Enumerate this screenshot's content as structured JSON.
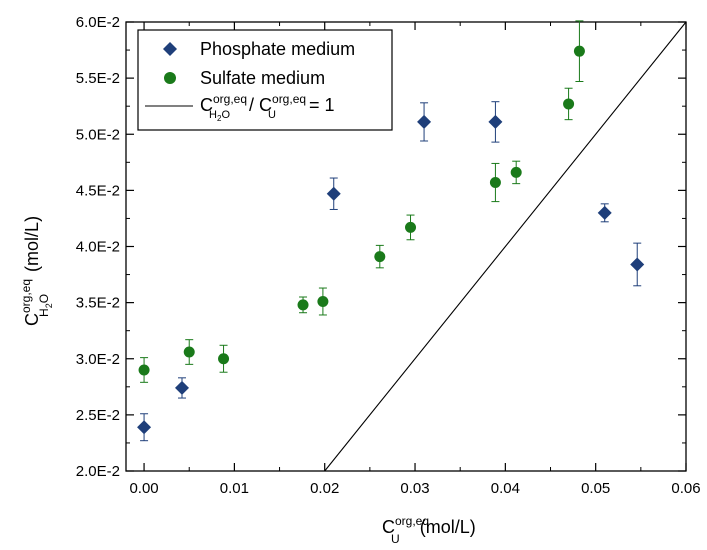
{
  "chart_data": {
    "type": "scatter",
    "x_axis": {
      "ylim_note": "",
      "ticks": [
        "0.00",
        "0.01",
        "0.02",
        "0.03",
        "0.04",
        "0.05",
        "0.06"
      ],
      "min": -0.002,
      "max": 0.06,
      "label_main": "C",
      "label_sup": "org,eq",
      "label_sub": "U",
      "label_unit": "(mol/L)"
    },
    "y_axis": {
      "ticks": [
        "2.0E-2",
        "2.5E-2",
        "3.0E-2",
        "3.5E-2",
        "4.0E-2",
        "4.5E-2",
        "5.0E-2",
        "5.5E-2",
        "6.0E-2"
      ],
      "min": 0.02,
      "max": 0.06,
      "label_main": "C",
      "label_sup": "org,eq",
      "label_sub": "H",
      "label_sub2": "2",
      "label_sub3": "O",
      "label_unit": "(mol/L)"
    },
    "series": [
      {
        "name": "Phosphate medium",
        "marker": "diamond",
        "color": "#1f3f7a",
        "points": [
          {
            "x": 0.0,
            "y": 0.0239,
            "err": 0.0012
          },
          {
            "x": 0.0042,
            "y": 0.0274,
            "err": 0.0009
          },
          {
            "x": 0.021,
            "y": 0.0447,
            "err": 0.0014
          },
          {
            "x": 0.031,
            "y": 0.0511,
            "err": 0.0017
          },
          {
            "x": 0.0389,
            "y": 0.0511,
            "err": 0.0018
          },
          {
            "x": 0.051,
            "y": 0.043,
            "err": 0.0008
          },
          {
            "x": 0.0546,
            "y": 0.0384,
            "err": 0.0019
          }
        ]
      },
      {
        "name": "Sulfate medium",
        "marker": "circle",
        "color": "#1a7a1a",
        "points": [
          {
            "x": 0.0,
            "y": 0.029,
            "err": 0.0011
          },
          {
            "x": 0.005,
            "y": 0.0306,
            "err": 0.0011
          },
          {
            "x": 0.0088,
            "y": 0.03,
            "err": 0.0012
          },
          {
            "x": 0.0176,
            "y": 0.0348,
            "err": 0.0007
          },
          {
            "x": 0.0198,
            "y": 0.0351,
            "err": 0.0012
          },
          {
            "x": 0.0261,
            "y": 0.0391,
            "err": 0.001
          },
          {
            "x": 0.0295,
            "y": 0.0417,
            "err": 0.0011
          },
          {
            "x": 0.0389,
            "y": 0.0457,
            "err": 0.0017
          },
          {
            "x": 0.0412,
            "y": 0.0466,
            "err": 0.001
          },
          {
            "x": 0.047,
            "y": 0.0527,
            "err": 0.0014
          },
          {
            "x": 0.0482,
            "y": 0.0574,
            "err": 0.0027
          }
        ]
      }
    ],
    "reference_line": {
      "color": "#000000",
      "points": [
        {
          "x": 0.02,
          "y": 0.02
        },
        {
          "x": 0.06,
          "y": 0.06
        }
      ]
    },
    "legend": {
      "placement": "top-left",
      "entries": [
        {
          "marker": "diamond",
          "color": "#1f3f7a",
          "label": "Phosphate medium"
        },
        {
          "marker": "circle",
          "color": "#1a7a1a",
          "label": "Sulfate medium"
        },
        {
          "marker": "line",
          "color": "#000000",
          "label_parts": {
            "c1": "C",
            "sup1": "org,eq",
            "sub1": "H",
            "sub1b": "2",
            "sub1c": "O",
            "slash": " / ",
            "c2": "C",
            "sup2": "org,eq",
            "sub2": "U",
            "tail": " = 1"
          }
        }
      ]
    },
    "grid": false
  }
}
